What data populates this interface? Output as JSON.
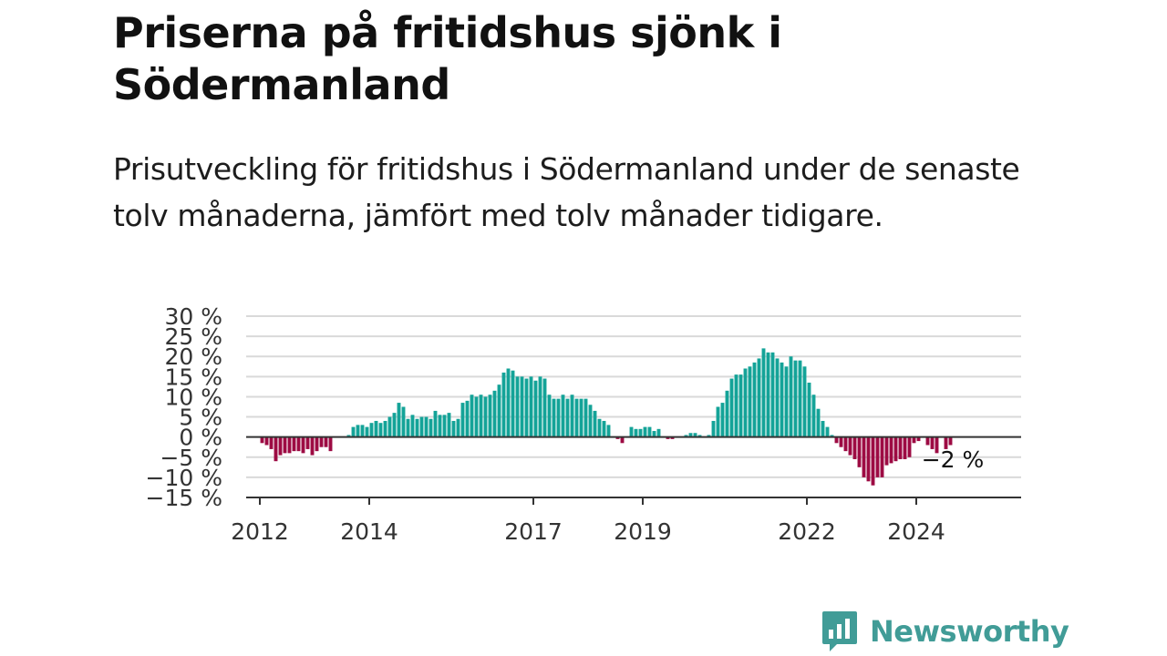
{
  "title": "Priserna på fritidshus sjönk i Södermanland",
  "subtitle": "Prisutveckling för fritidshus i Södermanland under de senaste tolv månaderna, jämfört med tolv månader tidigare.",
  "brand": {
    "name": "Newsworthy",
    "icon": "bar-chart-speech-bubble-icon",
    "color": "#419c97"
  },
  "colors": {
    "positive": "#14a398",
    "negative": "#9d0b43",
    "grid": "#d9d9d9",
    "axis": "#333333"
  },
  "chart_data": {
    "type": "bar",
    "title": "",
    "xlabel": "",
    "ylabel": "",
    "ylim": [
      -15,
      30
    ],
    "y_ticks": [
      30,
      25,
      20,
      15,
      10,
      5,
      0,
      -5,
      -10,
      -15
    ],
    "y_tick_labels": [
      "30 %",
      "25 %",
      "20 %",
      "15 %",
      "10 %",
      "5 %",
      "0 %",
      "−5 %",
      "−10 %",
      "−15 %"
    ],
    "x_range": [
      "2011-10",
      "2025-12"
    ],
    "x_ticks": [
      "2012-01",
      "2014-01",
      "2017-01",
      "2019-01",
      "2022-01",
      "2024-01"
    ],
    "x_tick_labels": [
      "2012",
      "2014",
      "2017",
      "2019",
      "2022",
      "2024"
    ],
    "end_label": "−2 %",
    "series": [
      {
        "start": "2012-01",
        "values": [
          -1.5,
          -2.0,
          -3.0,
          -6.0,
          -4.5,
          -4.0,
          -4.0,
          -3.5,
          -3.5,
          -4.0,
          -3.0,
          -4.5,
          -3.5,
          -2.5,
          -2.5,
          -3.5,
          0.0,
          0.0,
          0.0,
          0.5,
          2.5,
          3.0,
          3.0,
          2.5,
          3.5,
          4.0,
          3.5,
          4.0,
          5.0,
          6.0,
          8.5,
          7.5,
          4.5,
          5.5,
          4.5,
          5.0,
          5.0,
          4.5,
          6.5,
          5.5,
          5.5,
          6.0,
          4.0,
          4.5,
          8.5,
          9.0,
          10.5,
          10.0,
          10.5,
          10.0,
          10.5,
          11.5,
          13.0,
          16.0,
          17.0,
          16.5,
          15.0,
          15.0,
          14.5,
          15.0,
          14.0,
          15.0,
          14.5,
          10.5,
          9.5,
          9.5,
          10.5,
          9.5,
          10.5,
          9.5,
          9.5,
          9.5,
          8.0,
          6.5,
          4.5,
          4.0,
          3.0,
          0.0,
          -0.5,
          -1.5,
          0.0,
          2.5,
          2.0,
          2.0,
          2.5,
          2.5,
          1.5,
          2.0,
          0.0,
          -0.5,
          -0.5,
          0.0,
          0.0,
          0.5,
          1.0,
          1.0,
          0.5,
          0.0,
          0.5,
          4.0,
          7.5,
          8.5,
          11.5,
          14.5,
          15.5,
          15.5,
          17.0,
          17.5,
          18.5,
          19.5,
          22.0,
          21.0,
          21.0,
          19.5,
          18.5,
          17.5,
          20.0,
          19.0,
          19.0,
          17.5,
          13.5,
          10.5,
          7.0,
          4.0,
          2.5,
          0.5,
          -1.5,
          -2.5,
          -3.5,
          -4.5,
          -5.5,
          -7.5,
          -10.0,
          -11.0,
          -12.0,
          -10.0,
          -10.0,
          -7.0,
          -6.5,
          -6.0,
          -5.5,
          -5.5,
          -5.0,
          -1.5,
          -1.0,
          0.0,
          -2.0,
          -3.0,
          -4.0,
          0.0,
          -3.0,
          -2.0
        ]
      }
    ]
  }
}
